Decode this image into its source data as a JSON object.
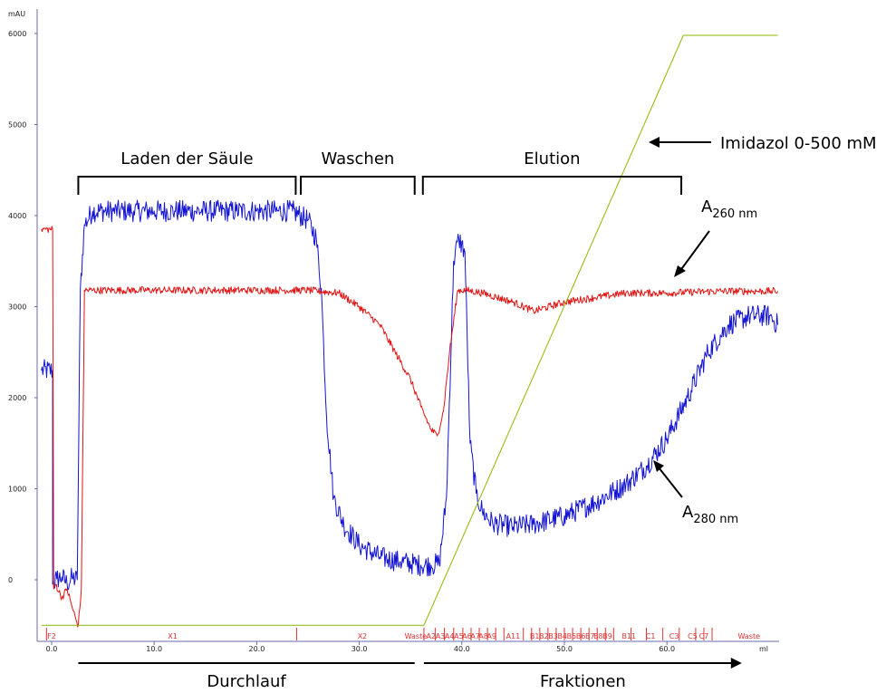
{
  "chart_data": {
    "type": "line",
    "title": "",
    "ylabel": "mAU",
    "xlabel": "ml",
    "xlim": [
      -1,
      71.5
    ],
    "ylim": [
      -600,
      6300
    ],
    "x_ticks": [
      "0.0",
      "10.0",
      "20.0",
      "30.0",
      "40.0",
      "50.0",
      "60.0"
    ],
    "x_tick_values": [
      0,
      10,
      20,
      30,
      40,
      50,
      60
    ],
    "y_ticks": [
      "0",
      "1000",
      "2000",
      "3000",
      "4000",
      "5000",
      "6000"
    ],
    "y_tick_values": [
      0,
      1000,
      2000,
      3000,
      4000,
      5000,
      6000
    ],
    "series": [
      {
        "name": "A280 nm",
        "color": "#1414d2",
        "noise": 120,
        "x": [
          -1,
          0.1,
          0.1,
          0.5,
          1.0,
          1.5,
          2.0,
          2.5,
          2.8,
          3.2,
          4,
          6,
          8,
          10,
          12,
          14,
          16,
          18,
          20,
          22,
          23.5,
          25,
          25.8,
          26.3,
          26.8,
          27.5,
          28.5,
          30,
          32,
          34,
          36,
          37,
          37.8,
          38.5,
          39.2,
          39.7,
          40.3,
          40.8,
          41.4,
          42,
          43,
          45,
          47,
          50,
          53,
          56,
          58,
          60,
          62,
          64,
          66,
          68,
          70,
          70.8
        ],
        "y": [
          2300,
          2300,
          -50,
          10,
          30,
          -40,
          20,
          0,
          3200,
          3900,
          4050,
          4050,
          4050,
          4050,
          4050,
          4050,
          4050,
          4050,
          4050,
          4050,
          4050,
          3950,
          3750,
          3200,
          1800,
          900,
          600,
          380,
          250,
          200,
          160,
          160,
          180,
          900,
          3500,
          3750,
          3600,
          1500,
          950,
          750,
          620,
          580,
          610,
          700,
          850,
          1050,
          1250,
          1550,
          2000,
          2500,
          2800,
          2900,
          2900,
          2800
        ]
      },
      {
        "name": "A260 nm",
        "color": "#e01414",
        "noise": 40,
        "x": [
          -1,
          0.1,
          0.2,
          0.4,
          1.0,
          1.5,
          2.0,
          2.4,
          2.6,
          2.9,
          3.2,
          4,
          10,
          20,
          25,
          28,
          30,
          32,
          33.5,
          35,
          36,
          37,
          37.6,
          38.2,
          38.8,
          39.6,
          40.5,
          42,
          45,
          47,
          50,
          53,
          56,
          60,
          65,
          70,
          70.8
        ],
        "y": [
          3850,
          3850,
          -100,
          -50,
          -200,
          -100,
          -300,
          -450,
          -500,
          -100,
          3180,
          3180,
          3180,
          3180,
          3180,
          3150,
          3000,
          2800,
          2500,
          2200,
          1900,
          1650,
          1580,
          1850,
          2500,
          3180,
          3180,
          3150,
          3050,
          2950,
          3050,
          3100,
          3150,
          3150,
          3170,
          3170,
          3170
        ]
      },
      {
        "name": "Imidazol 0-500 mM",
        "color": "#8cb800",
        "noise": 0,
        "x": [
          -1,
          36.3,
          61.6,
          70.8
        ],
        "y": [
          -500,
          -500,
          5980,
          5980
        ]
      }
    ],
    "fractions": {
      "color": "#e03030",
      "labels": [
        {
          "text": "F2",
          "x": 0.0
        },
        {
          "text": "X1",
          "x": 11.8
        },
        {
          "text": "X2",
          "x": 30.3
        },
        {
          "text": "Waste",
          "x": 35.5
        },
        {
          "text": "A2",
          "x": 37.0
        },
        {
          "text": "A3",
          "x": 37.9
        },
        {
          "text": "A4",
          "x": 38.8
        },
        {
          "text": "A5",
          "x": 39.7
        },
        {
          "text": "A6",
          "x": 40.5
        },
        {
          "text": "A7",
          "x": 41.3
        },
        {
          "text": "A8",
          "x": 42.1
        },
        {
          "text": "A9",
          "x": 42.9
        },
        {
          "text": "A11",
          "x": 45.0
        },
        {
          "text": "B1",
          "x": 47.1
        },
        {
          "text": "B2",
          "x": 48.0
        },
        {
          "text": "B3",
          "x": 48.9
        },
        {
          "text": "B4",
          "x": 49.8
        },
        {
          "text": "B5",
          "x": 50.7
        },
        {
          "text": "B6",
          "x": 51.6
        },
        {
          "text": "B7",
          "x": 52.5
        },
        {
          "text": "B8",
          "x": 53.3
        },
        {
          "text": "B9",
          "x": 54.2
        },
        {
          "text": "B11",
          "x": 56.3
        },
        {
          "text": "C1",
          "x": 58.4
        },
        {
          "text": "C3",
          "x": 60.7
        },
        {
          "text": "C5",
          "x": 62.5
        },
        {
          "text": "C7",
          "x": 63.6
        },
        {
          "text": "Waste",
          "x": 68.0
        }
      ],
      "markers": [
        -0.5,
        23.9,
        36.3,
        37.4,
        38.3,
        39.2,
        40.1,
        40.9,
        41.7,
        42.5,
        43.3,
        44.1,
        46.0,
        46.8,
        47.6,
        48.4,
        49.2,
        50.0,
        50.8,
        51.6,
        52.4,
        53.2,
        54.0,
        54.8,
        56.5,
        58.0,
        59.6,
        61.2,
        62.8,
        63.6,
        64.4
      ]
    },
    "annotations": {
      "brackets": [
        {
          "label": "Laden der Säule",
          "x_from": 2.6,
          "x_to": 23.8
        },
        {
          "label": "Waschen",
          "x_from": 24.3,
          "x_to": 35.4
        },
        {
          "label": "Elution",
          "x_from": 36.2,
          "x_to": 61.4
        }
      ],
      "bottom_arrows": [
        {
          "label": "Durchlauf",
          "x_from": 2.6,
          "x_to": 35.4,
          "arrowhead": false
        },
        {
          "label": "Fraktionen",
          "x_from": 36.3,
          "x_to": 67.3,
          "arrowhead": true
        }
      ],
      "line_labels": [
        {
          "series": "Imidazol 0-500 mM",
          "text": "Imidazol 0-500 mM"
        },
        {
          "series": "A260 nm",
          "main": "A",
          "sub": "260 nm"
        },
        {
          "series": "A280 nm",
          "main": "A",
          "sub": "280 nm"
        }
      ]
    },
    "grid": false,
    "legend": "none"
  }
}
